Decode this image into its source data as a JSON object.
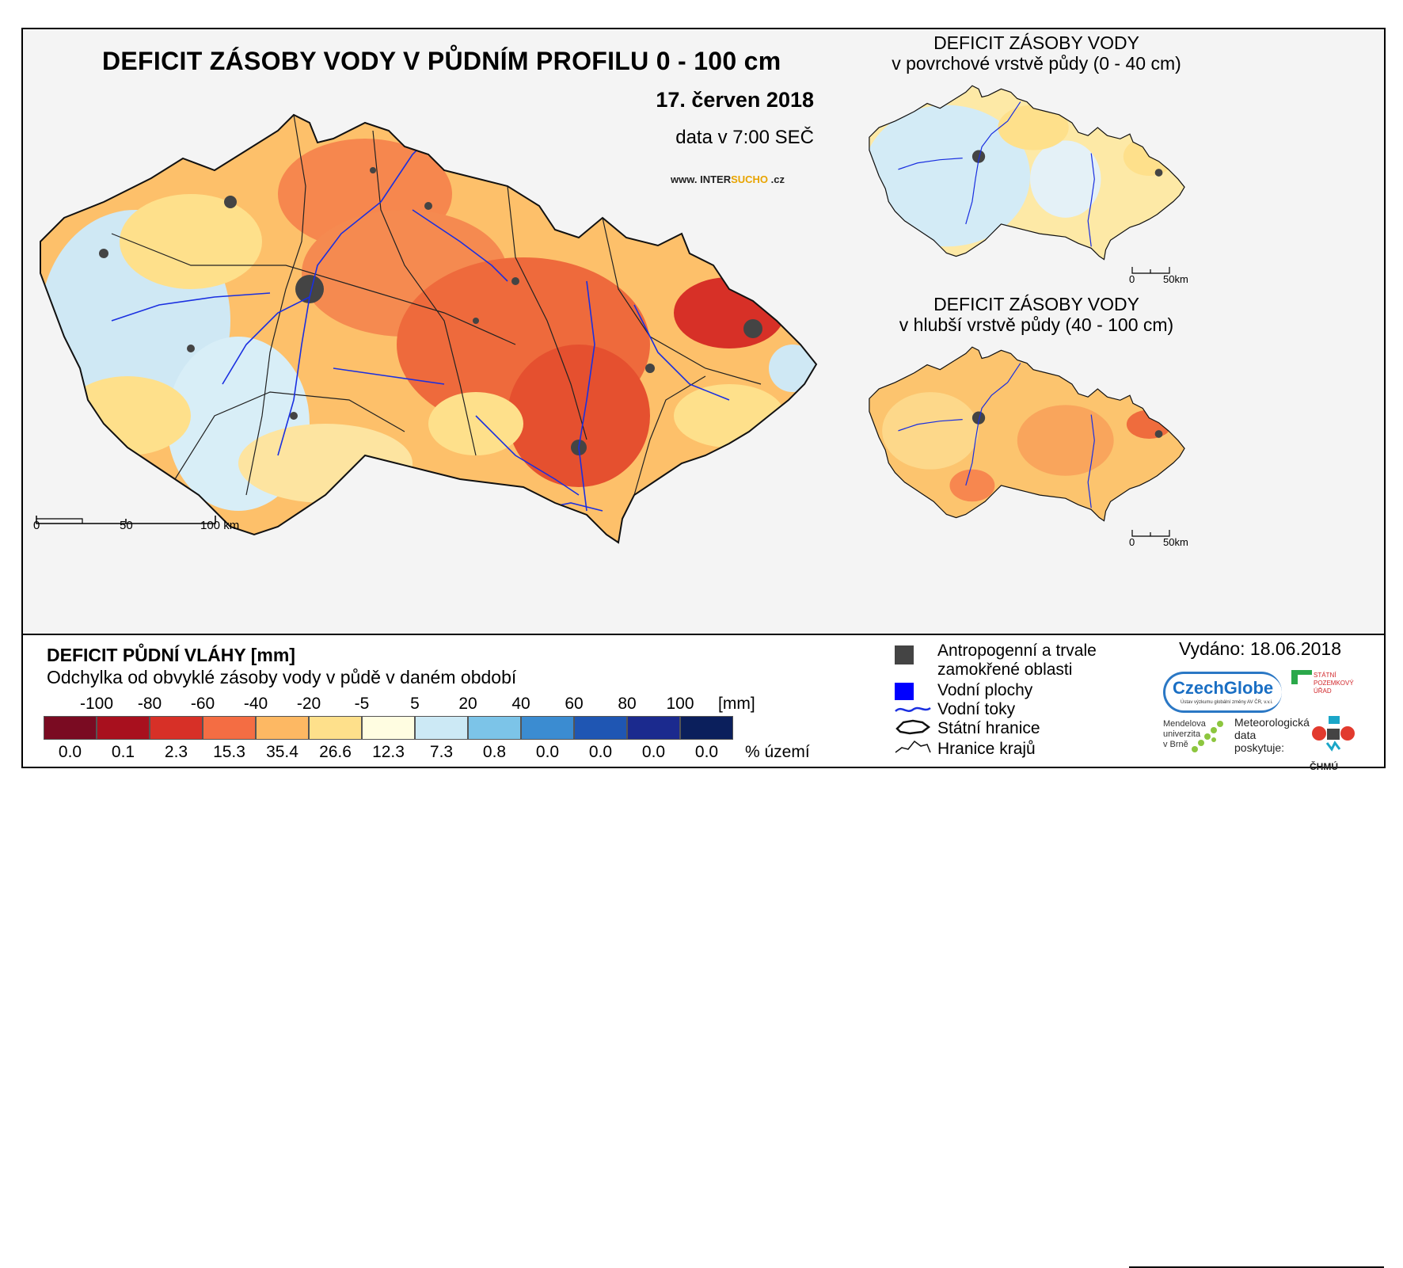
{
  "header": {
    "title": "DEFICIT ZÁSOBY VODY V PŮDNÍM PROFILU 0 - 100 cm",
    "date": "17. červen 2018",
    "data_time": "data v 7:00 SEČ",
    "website_prefix": "www. INTER",
    "website_highlight": "SUCHO",
    "website_suffix": " .cz"
  },
  "maps": {
    "main_scale_labels": [
      "0",
      "50",
      "100 km"
    ],
    "top_inset": {
      "title_line1": "DEFICIT ZÁSOBY VODY",
      "title_line2": "v povrchové vrstvě půdy (0 - 40 cm)",
      "scale_labels": [
        "0",
        "50km"
      ]
    },
    "bottom_inset": {
      "title_line1": "DEFICIT ZÁSOBY VODY",
      "title_line2": "v hlubší vrstvě půdy (40 - 100 cm)",
      "scale_labels": [
        "0",
        "50km"
      ]
    }
  },
  "legend": {
    "title": "DEFICIT PŮDNÍ VLÁHY [mm]",
    "subtitle": "Odchylka od obvyklé zásoby vody v půdě v daném období",
    "ticks": [
      "-100",
      "-80",
      "-60",
      "-40",
      "-20",
      "-5",
      "5",
      "20",
      "40",
      "60",
      "80",
      "100"
    ],
    "unit": "[mm]",
    "colors": [
      "#7a0b22",
      "#a8101e",
      "#d73027",
      "#f46d43",
      "#fdb863",
      "#fee08b",
      "#fffde1",
      "#cce9f5",
      "#7cc4e8",
      "#3b8cd1",
      "#1f56b3",
      "#1b2a8e",
      "#0b1f5c"
    ],
    "percentages": [
      "0.0",
      "0.1",
      "2.3",
      "15.3",
      "35.4",
      "26.6",
      "12.3",
      "7.3",
      "0.8",
      "0.0",
      "0.0",
      "0.0",
      "0.0"
    ],
    "percent_label": "% území"
  },
  "symbols": {
    "anthropogenic_line1": "Antropogenní a trvale",
    "anthropogenic_line2": "zamokřené oblasti",
    "water_bodies": "Vodní plochy",
    "water_courses": "Vodní toky",
    "state_border": "Státní hranice",
    "region_border": "Hranice krajů"
  },
  "issued": "Vydáno: 18.06.2018",
  "logos": {
    "czechglobe": "CzechGlobe",
    "czechglobe_sub": "Ústav výzkumu globální změny AV ČR, v.v.i.",
    "spu_line1": "STÁTNÍ",
    "spu_line2": "POZEMKOVÝ",
    "spu_line3": "ÚŘAD",
    "mendel_line1": "Mendelova",
    "mendel_line2": "univerzita",
    "mendel_line3": "v Brně",
    "meteo_line1": "Meteorologická",
    "meteo_line2": "data",
    "meteo_line3": "poskytuje:",
    "chmu": "ČHMÚ"
  }
}
